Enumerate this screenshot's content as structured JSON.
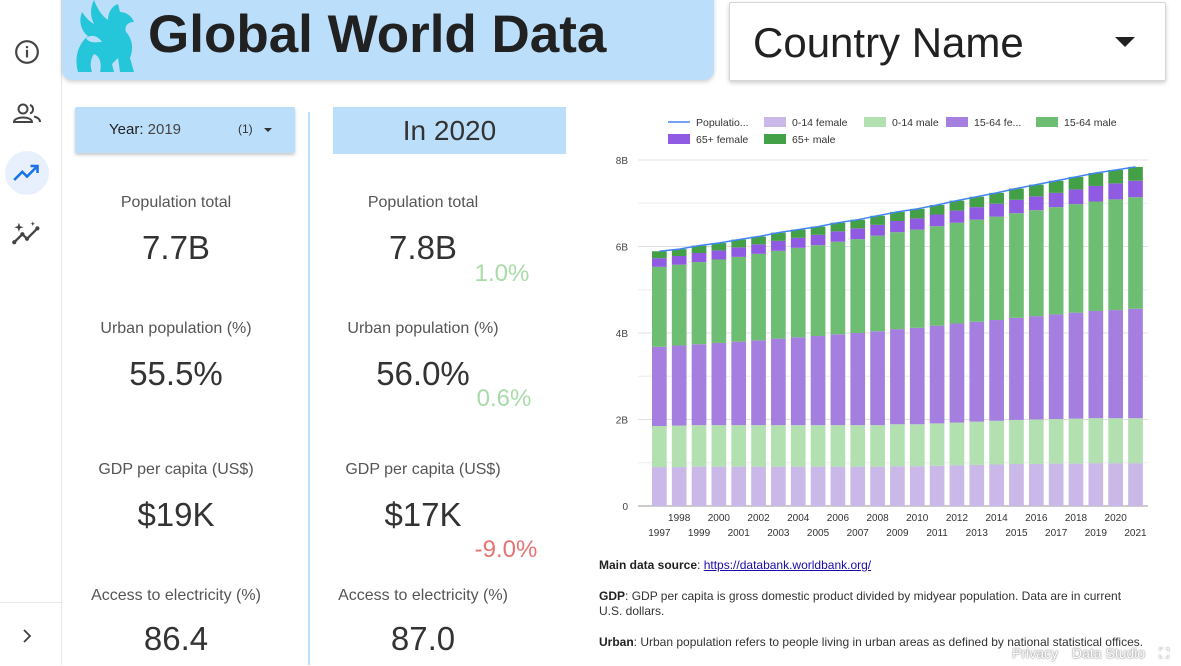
{
  "nav": {
    "items": [
      "info-icon",
      "people-icon",
      "trending-up-icon",
      "insights-icon"
    ],
    "expand_icon": "chevron-right-icon"
  },
  "header": {
    "title": "Global World Data",
    "logo": "winged-lion-logo"
  },
  "country_select": {
    "label": "Country Name"
  },
  "year_filter": {
    "label": "Year",
    "value": "2019",
    "count": "(1)"
  },
  "compare": {
    "title": "In 2020"
  },
  "metrics": {
    "selected": [
      {
        "label": "Population total",
        "value": "7.7B"
      },
      {
        "label": "Urban population (%)",
        "value": "55.5%"
      },
      {
        "label": "GDP per capita (US$)",
        "value": "$19K"
      },
      {
        "label": "Access to electricity (%)",
        "value": "86.4"
      }
    ],
    "current": [
      {
        "label": "Population total",
        "value": "7.8B",
        "delta": "1.0%"
      },
      {
        "label": "Urban population (%)",
        "value": "56.0%",
        "delta": "0.6%"
      },
      {
        "label": "GDP per capita (US$)",
        "value": "$17K",
        "delta": "-9.0%"
      },
      {
        "label": "Access to electricity (%)",
        "value": "87.0",
        "delta": ""
      }
    ]
  },
  "chart_data": {
    "type": "bar",
    "stacked": true,
    "title": "",
    "xlabel": "",
    "ylabel": "",
    "ylim": [
      0,
      8
    ],
    "y_ticks": [
      "0",
      "2B",
      "4B",
      "6B",
      "8B"
    ],
    "categories": [
      "1997",
      "1998",
      "1999",
      "2000",
      "2001",
      "2002",
      "2003",
      "2004",
      "2005",
      "2006",
      "2007",
      "2008",
      "2009",
      "2010",
      "2011",
      "2012",
      "2013",
      "2014",
      "2015",
      "2016",
      "2017",
      "2018",
      "2019",
      "2020",
      "2021"
    ],
    "legend_position": "top",
    "grid": true,
    "series": [
      {
        "name": "0-14 female",
        "color": "#c9b8e8",
        "values": [
          0.9,
          0.9,
          0.91,
          0.91,
          0.91,
          0.91,
          0.91,
          0.91,
          0.91,
          0.91,
          0.91,
          0.91,
          0.92,
          0.92,
          0.93,
          0.94,
          0.95,
          0.96,
          0.97,
          0.97,
          0.98,
          0.98,
          0.99,
          0.99,
          0.99
        ]
      },
      {
        "name": "0-14 male",
        "color": "#b2e0b0",
        "values": [
          0.95,
          0.96,
          0.96,
          0.96,
          0.96,
          0.96,
          0.96,
          0.96,
          0.96,
          0.96,
          0.96,
          0.96,
          0.97,
          0.97,
          0.98,
          0.99,
          1.0,
          1.01,
          1.02,
          1.03,
          1.03,
          1.04,
          1.04,
          1.04,
          1.04
        ]
      },
      {
        "name": "15-64 female",
        "color": "#a57fe0",
        "values": [
          1.83,
          1.85,
          1.87,
          1.9,
          1.93,
          1.96,
          2.0,
          2.03,
          2.06,
          2.1,
          2.13,
          2.17,
          2.2,
          2.23,
          2.26,
          2.29,
          2.31,
          2.33,
          2.36,
          2.39,
          2.42,
          2.45,
          2.48,
          2.5,
          2.53
        ]
      },
      {
        "name": "15-64 male",
        "color": "#6dbd73",
        "values": [
          1.85,
          1.87,
          1.9,
          1.93,
          1.96,
          2.0,
          2.03,
          2.07,
          2.1,
          2.14,
          2.17,
          2.21,
          2.24,
          2.27,
          2.3,
          2.33,
          2.36,
          2.39,
          2.42,
          2.45,
          2.48,
          2.51,
          2.53,
          2.56,
          2.58
        ]
      },
      {
        "name": "65+ female",
        "color": "#8f5be2",
        "values": [
          0.2,
          0.2,
          0.21,
          0.21,
          0.22,
          0.22,
          0.23,
          0.23,
          0.24,
          0.24,
          0.25,
          0.25,
          0.26,
          0.26,
          0.27,
          0.28,
          0.29,
          0.3,
          0.31,
          0.32,
          0.33,
          0.34,
          0.36,
          0.37,
          0.38
        ]
      },
      {
        "name": "65+ male",
        "color": "#43a047",
        "values": [
          0.16,
          0.16,
          0.17,
          0.17,
          0.18,
          0.18,
          0.19,
          0.19,
          0.19,
          0.2,
          0.2,
          0.21,
          0.21,
          0.22,
          0.22,
          0.23,
          0.24,
          0.25,
          0.26,
          0.27,
          0.28,
          0.29,
          0.3,
          0.31,
          0.32
        ]
      }
    ],
    "line_series": {
      "name": "Populatio...",
      "color": "#4285f4",
      "values": [
        5.89,
        5.94,
        6.02,
        6.08,
        6.16,
        6.23,
        6.32,
        6.39,
        6.46,
        6.55,
        6.62,
        6.71,
        6.8,
        6.87,
        6.96,
        7.06,
        7.15,
        7.24,
        7.34,
        7.43,
        7.52,
        7.61,
        7.7,
        7.77,
        7.84
      ]
    },
    "legend_labels": [
      "Populatio...",
      "0-14 female",
      "0-14 male",
      "15-64 fe...",
      "15-64 male",
      "65+ female",
      "65+ male"
    ]
  },
  "notes": [
    {
      "key": "Main data source",
      "text": "",
      "link": "https://databank.worldbank.org/"
    },
    {
      "key": "GDP",
      "text": "GDP per capita is gross domestic product divided by midyear population. Data are in current U.S. dollars.",
      "link": ""
    },
    {
      "key": "Urban",
      "text": "Urban population refers to people living in urban areas as defined by national statistical offices.",
      "link": ""
    }
  ],
  "footer": {
    "privacy": "Privacy",
    "studio": "Data Studio"
  }
}
